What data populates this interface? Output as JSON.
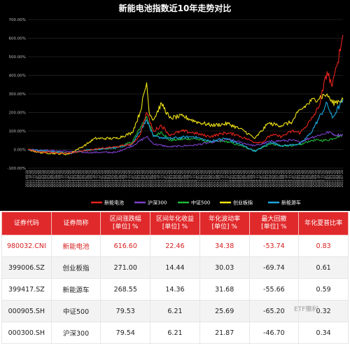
{
  "chart_data": {
    "type": "line",
    "title": "新能电池指数近10年走势对比",
    "ylim": [
      -100,
      700
    ],
    "y_ticks": [
      "-100.00%",
      "0.00%",
      "100.00%",
      "200.00%",
      "300.00%",
      "400.00%",
      "500.00%",
      "600.00%",
      "700.00%"
    ],
    "x_ticks": [
      "2011-09-28",
      "2011-10-28",
      "2011-11-28",
      "2011-12-28",
      "2012-01-28",
      "2012-02-28",
      "2012-03-28",
      "2012-04-28",
      "2012-05-28",
      "2012-06-28",
      "2012-07-28",
      "2012-08-28",
      "2012-09-28",
      "2012-10-28",
      "2012-11-28",
      "2012-12-28",
      "2013-01-28",
      "2013-02-28",
      "2013-03-28",
      "2013-04-28",
      "2013-05-28",
      "2013-06-28",
      "2013-07-28",
      "2013-08-28",
      "2013-09-28",
      "2013-10-28",
      "2013-11-28",
      "2013-12-28",
      "2014-01-28",
      "2014-02-28",
      "2014-03-28",
      "2014-04-28",
      "2014-05-28",
      "2014-06-28",
      "2014-07-28",
      "2014-08-28",
      "2014-09-28",
      "2014-10-28",
      "2014-11-28",
      "2014-12-28",
      "2015-01-28",
      "2015-02-28",
      "2015-03-28",
      "2015-04-28",
      "2015-05-28",
      "2015-06-28",
      "2015-07-28",
      "2015-08-28",
      "2015-09-28",
      "2015-10-28",
      "2015-11-28",
      "2015-12-28",
      "2016-01-28",
      "2016-02-28",
      "2016-03-28",
      "2016-04-28",
      "2016-05-28",
      "2016-06-28",
      "2016-07-28",
      "2016-08-28",
      "2016-09-28",
      "2016-10-28",
      "2016-11-28",
      "2016-12-28",
      "2017-01-28",
      "2017-02-28",
      "2017-03-28",
      "2017-04-28",
      "2017-05-28",
      "2017-06-28",
      "2017-07-28",
      "2017-08-28",
      "2017-09-28",
      "2017-10-28",
      "2017-11-28",
      "2017-12-28",
      "2018-01-28",
      "2018-02-28",
      "2018-03-28",
      "2018-04-28",
      "2018-05-28",
      "2018-06-28",
      "2018-07-28",
      "2018-08-28",
      "2018-09-28",
      "2018-10-28",
      "2018-11-28",
      "2018-12-28",
      "2019-01-28",
      "2019-02-28",
      "2019-03-28",
      "2019-04-28",
      "2019-05-28",
      "2019-06-28",
      "2019-07-28",
      "2019-08-28",
      "2019-09-28",
      "2019-10-28",
      "2019-11-28",
      "2019-12-28",
      "2020-01-28",
      "2020-02-28",
      "2020-03-28",
      "2020-04-28",
      "2020-05-28",
      "2020-06-28",
      "2020-07-28",
      "2020-08-28",
      "2020-09-28",
      "2020-10-28",
      "2020-11-28",
      "2020-12-28",
      "2021-01-28",
      "2021-02-28",
      "2021-03-28",
      "2021-04-28",
      "2021-05-28",
      "2021-06-28",
      "2021-07-28"
    ],
    "series": [
      {
        "name": "新能电池",
        "color": "#e8231d",
        "points": [
          [
            "2011-09-28",
            0
          ],
          [
            "2012-01-28",
            -12
          ],
          [
            "2012-06-28",
            -15
          ],
          [
            "2012-12-28",
            -20
          ],
          [
            "2013-06-28",
            -5
          ],
          [
            "2013-12-28",
            5
          ],
          [
            "2014-06-28",
            15
          ],
          [
            "2014-12-28",
            30
          ],
          [
            "2015-03-28",
            80
          ],
          [
            "2015-06-12",
            200
          ],
          [
            "2015-08-28",
            100
          ],
          [
            "2015-11-28",
            130
          ],
          [
            "2016-02-28",
            80
          ],
          [
            "2016-07-28",
            100
          ],
          [
            "2016-11-28",
            90
          ],
          [
            "2017-05-28",
            70
          ],
          [
            "2017-11-28",
            90
          ],
          [
            "2018-03-28",
            80
          ],
          [
            "2018-10-28",
            40
          ],
          [
            "2019-01-28",
            40
          ],
          [
            "2019-04-28",
            80
          ],
          [
            "2019-08-28",
            70
          ],
          [
            "2019-12-28",
            100
          ],
          [
            "2020-03-28",
            90
          ],
          [
            "2020-07-28",
            160
          ],
          [
            "2020-10-28",
            230
          ],
          [
            "2021-01-28",
            420
          ],
          [
            "2021-03-28",
            340
          ],
          [
            "2021-05-28",
            470
          ],
          [
            "2021-07-28",
            616.6
          ]
        ]
      },
      {
        "name": "沪深300",
        "color": "#7a3fc8",
        "points": [
          [
            "2011-09-28",
            0
          ],
          [
            "2012-06-28",
            -5
          ],
          [
            "2012-12-28",
            -10
          ],
          [
            "2013-06-28",
            -15
          ],
          [
            "2014-06-28",
            -15
          ],
          [
            "2014-12-28",
            20
          ],
          [
            "2015-06-12",
            70
          ],
          [
            "2015-08-28",
            30
          ],
          [
            "2016-02-28",
            15
          ],
          [
            "2016-12-28",
            25
          ],
          [
            "2017-12-28",
            55
          ],
          [
            "2018-10-28",
            20
          ],
          [
            "2019-04-28",
            45
          ],
          [
            "2019-12-28",
            50
          ],
          [
            "2020-03-28",
            40
          ],
          [
            "2020-07-28",
            65
          ],
          [
            "2021-02-28",
            95
          ],
          [
            "2021-04-28",
            80
          ],
          [
            "2021-07-28",
            79.54
          ]
        ]
      },
      {
        "name": "中证500",
        "color": "#1db83a",
        "points": [
          [
            "2011-09-28",
            0
          ],
          [
            "2012-01-28",
            -15
          ],
          [
            "2012-06-28",
            -10
          ],
          [
            "2012-12-28",
            -20
          ],
          [
            "2013-06-28",
            -5
          ],
          [
            "2014-06-28",
            10
          ],
          [
            "2014-12-28",
            40
          ],
          [
            "2015-06-12",
            180
          ],
          [
            "2015-08-28",
            70
          ],
          [
            "2015-11-28",
            95
          ],
          [
            "2016-02-28",
            50
          ],
          [
            "2016-11-28",
            60
          ],
          [
            "2017-05-28",
            40
          ],
          [
            "2017-11-28",
            45
          ],
          [
            "2018-06-28",
            15
          ],
          [
            "2018-10-28",
            -5
          ],
          [
            "2019-04-28",
            30
          ],
          [
            "2019-08-28",
            20
          ],
          [
            "2020-03-28",
            25
          ],
          [
            "2020-07-28",
            50
          ],
          [
            "2021-01-28",
            50
          ],
          [
            "2021-07-28",
            79.53
          ]
        ]
      },
      {
        "name": "创业板指",
        "color": "#f0e214",
        "points": [
          [
            "2011-09-28",
            0
          ],
          [
            "2012-01-28",
            -15
          ],
          [
            "2012-12-28",
            -25
          ],
          [
            "2013-06-28",
            20
          ],
          [
            "2013-10-28",
            60
          ],
          [
            "2014-06-28",
            60
          ],
          [
            "2014-12-28",
            90
          ],
          [
            "2015-03-28",
            200
          ],
          [
            "2015-06-12",
            360
          ],
          [
            "2015-07-10",
            200
          ],
          [
            "2015-08-28",
            160
          ],
          [
            "2015-11-28",
            250
          ],
          [
            "2016-02-28",
            170
          ],
          [
            "2016-07-28",
            180
          ],
          [
            "2016-12-28",
            150
          ],
          [
            "2017-06-28",
            130
          ],
          [
            "2017-12-28",
            140
          ],
          [
            "2018-06-28",
            100
          ],
          [
            "2018-10-28",
            60
          ],
          [
            "2019-03-28",
            140
          ],
          [
            "2019-08-28",
            130
          ],
          [
            "2019-12-28",
            150
          ],
          [
            "2020-02-28",
            200
          ],
          [
            "2020-07-28",
            260
          ],
          [
            "2021-01-28",
            300
          ],
          [
            "2021-03-28",
            250
          ],
          [
            "2021-07-28",
            271
          ]
        ]
      },
      {
        "name": "新能源车",
        "color": "#1ca6df",
        "points": [
          [
            "2011-09-28",
            0
          ],
          [
            "2012-06-28",
            -10
          ],
          [
            "2012-12-28",
            -20
          ],
          [
            "2013-06-28",
            -5
          ],
          [
            "2014-06-28",
            10
          ],
          [
            "2014-12-28",
            30
          ],
          [
            "2015-06-12",
            160
          ],
          [
            "2015-08-28",
            70
          ],
          [
            "2016-02-28",
            60
          ],
          [
            "2016-11-28",
            70
          ],
          [
            "2017-05-28",
            45
          ],
          [
            "2017-11-28",
            60
          ],
          [
            "2018-06-28",
            20
          ],
          [
            "2018-10-28",
            -10
          ],
          [
            "2019-04-28",
            40
          ],
          [
            "2019-08-28",
            20
          ],
          [
            "2020-03-28",
            30
          ],
          [
            "2020-07-28",
            90
          ],
          [
            "2021-01-28",
            250
          ],
          [
            "2021-03-28",
            170
          ],
          [
            "2021-07-28",
            268.55
          ]
        ]
      }
    ],
    "legend_position": "bottom"
  },
  "table": {
    "headers": [
      "证券代码",
      "证券简称",
      "区间涨跌幅\n[单位] %",
      "区间年化收益\n[单位] %",
      "年化波动率\n[单位] %",
      "最大回撤\n[单位] %",
      "年化夏普比率"
    ],
    "rows": [
      [
        "980032.CNI",
        "新能电池",
        "616.60",
        "22.46",
        "34.38",
        "-53.74",
        "0.83"
      ],
      [
        "399006.SZ",
        "创业板指",
        "271.00",
        "14.44",
        "30.03",
        "-69.74",
        "0.61"
      ],
      [
        "399417.SZ",
        "新能源车",
        "268.55",
        "14.36",
        "31.68",
        "-55.66",
        "0.59"
      ],
      [
        "000905.SH",
        "中证500",
        "79.53",
        "6.21",
        "25.69",
        "-65.20",
        "0.32"
      ],
      [
        "000300.SH",
        "沪深300",
        "79.54",
        "6.21",
        "21.87",
        "-46.70",
        "0.34"
      ]
    ]
  },
  "watermark": "ETF懒利",
  "colors": {
    "header_bg": "#e0292b",
    "highlight_text": "#d62020",
    "chart_bg": "#000000"
  }
}
